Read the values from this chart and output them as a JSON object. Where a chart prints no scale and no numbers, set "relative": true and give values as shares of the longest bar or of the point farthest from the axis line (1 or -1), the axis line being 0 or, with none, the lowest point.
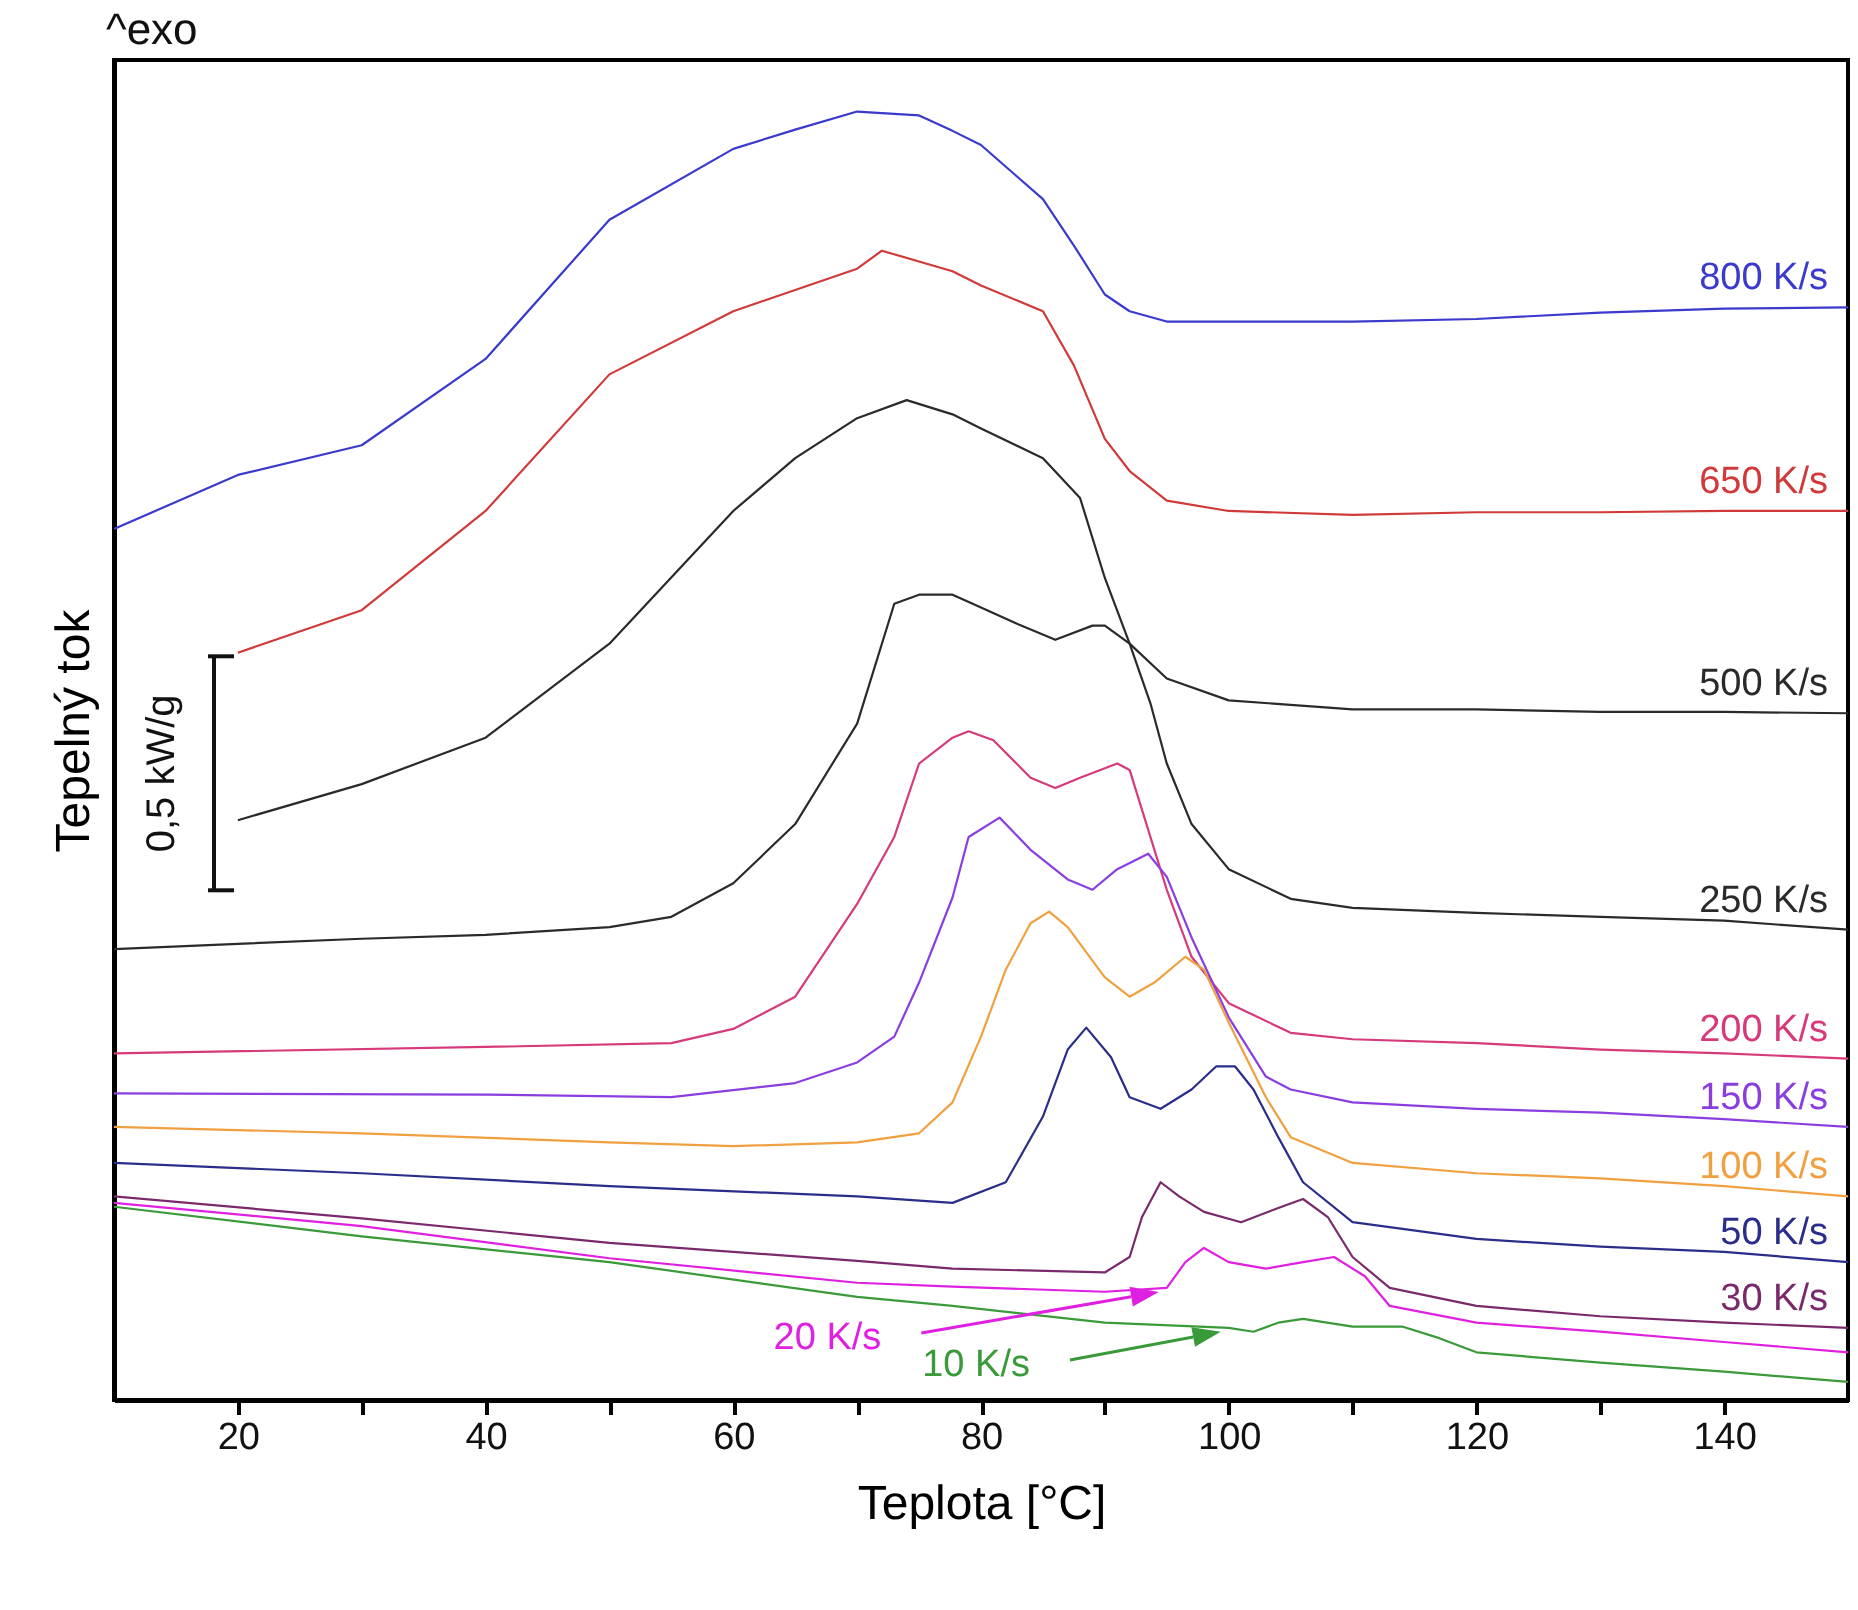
{
  "chart_data": {
    "type": "line",
    "relative": true,
    "xlabel": "Teplota [°C]",
    "ylabel": "Tepelný tok",
    "annotations": [
      "^exo",
      "0,5 kW/g"
    ],
    "xlim": [
      10,
      150
    ],
    "xticks": [
      20,
      {
        "value": 30,
        "label": null
      },
      40,
      {
        "value": 50,
        "label": null
      },
      60,
      {
        "value": 70,
        "label": null
      },
      80,
      {
        "value": 90,
        "label": null
      },
      100,
      {
        "value": 110,
        "label": null
      },
      120,
      {
        "value": 130,
        "label": null
      },
      140
    ],
    "grid": false,
    "marker": "none",
    "series": [
      {
        "name": "800 K/s",
        "color": "#3a3acc",
        "x": [
          10,
          20,
          30,
          40,
          50,
          60,
          65,
          70,
          75,
          77.7,
          80,
          85,
          87.5,
          90,
          92,
          95,
          100,
          110,
          120,
          130,
          140,
          150
        ],
        "values": [
          0.676,
          0.718,
          0.741,
          0.808,
          0.916,
          0.971,
          0.986,
          1.0,
          0.997,
          0.985,
          0.974,
          0.932,
          0.896,
          0.858,
          0.845,
          0.837,
          0.837,
          0.837,
          0.839,
          0.844,
          0.847,
          0.848
        ]
      },
      {
        "name": "650 K/s",
        "color": "#d03a3a",
        "x": [
          20,
          30,
          40,
          50,
          60,
          70,
          72,
          77.7,
          80,
          85,
          87.5,
          90,
          92,
          95,
          100,
          110,
          120,
          130,
          140,
          150
        ],
        "values": [
          0.58,
          0.613,
          0.69,
          0.796,
          0.845,
          0.878,
          0.892,
          0.876,
          0.865,
          0.845,
          0.803,
          0.746,
          0.721,
          0.698,
          0.69,
          0.687,
          0.689,
          0.689,
          0.69,
          0.69
        ]
      },
      {
        "name": "500 K/s",
        "color": "#2a2a2a",
        "x": [
          20,
          30,
          40,
          50,
          60,
          65,
          70,
          74,
          77.7,
          80,
          85,
          88,
          90,
          92,
          95,
          100,
          110,
          120,
          130,
          140,
          150
        ],
        "values": [
          0.45,
          0.478,
          0.514,
          0.587,
          0.69,
          0.731,
          0.762,
          0.776,
          0.765,
          0.754,
          0.731,
          0.7,
          0.638,
          0.587,
          0.56,
          0.543,
          0.536,
          0.536,
          0.534,
          0.534,
          0.533
        ]
      },
      {
        "name": "250 K/s",
        "color": "#2a2a2a",
        "x": [
          10,
          20,
          30,
          40,
          50,
          55,
          60,
          65,
          70,
          73,
          75,
          77.7,
          80,
          83,
          86,
          89,
          90,
          92,
          93.7,
          95,
          97,
          100,
          105,
          110,
          120,
          130,
          140,
          150
        ],
        "values": [
          0.35,
          0.354,
          0.358,
          0.361,
          0.367,
          0.375,
          0.401,
          0.447,
          0.525,
          0.618,
          0.625,
          0.625,
          0.615,
          0.602,
          0.59,
          0.601,
          0.601,
          0.587,
          0.54,
          0.494,
          0.447,
          0.412,
          0.389,
          0.382,
          0.378,
          0.375,
          0.372,
          0.365
        ]
      },
      {
        "name": "200 K/s",
        "color": "#d63a7a",
        "x": [
          10,
          40,
          55,
          60,
          65,
          70,
          73,
          75,
          77.7,
          79,
          81,
          84,
          86,
          88,
          91,
          92,
          95,
          97,
          100,
          105,
          110,
          120,
          130,
          140,
          150
        ],
        "values": [
          0.269,
          0.274,
          0.277,
          0.288,
          0.313,
          0.385,
          0.437,
          0.494,
          0.514,
          0.519,
          0.512,
          0.483,
          0.475,
          0.483,
          0.494,
          0.489,
          0.396,
          0.344,
          0.308,
          0.285,
          0.28,
          0.277,
          0.272,
          0.269,
          0.265
        ]
      },
      {
        "name": "150 K/s",
        "color": "#8a3ee0",
        "x": [
          10,
          40,
          55,
          65,
          70,
          73,
          75,
          77.7,
          79,
          81.5,
          84,
          87,
          89,
          91,
          93.5,
          95,
          97,
          100,
          103,
          105,
          110,
          120,
          130,
          140,
          150
        ],
        "values": [
          0.238,
          0.237,
          0.235,
          0.246,
          0.262,
          0.282,
          0.324,
          0.39,
          0.437,
          0.452,
          0.427,
          0.404,
          0.396,
          0.412,
          0.424,
          0.406,
          0.359,
          0.297,
          0.251,
          0.241,
          0.231,
          0.226,
          0.223,
          0.218,
          0.212
        ]
      },
      {
        "name": "100 K/s",
        "color": "#f0a040",
        "x": [
          10,
          30,
          50,
          60,
          70,
          75,
          77.7,
          80,
          82,
          84,
          85.5,
          87,
          90,
          92,
          94,
          96.5,
          98,
          100,
          103,
          105,
          110,
          120,
          130,
          140,
          150
        ],
        "values": [
          0.212,
          0.207,
          0.2,
          0.197,
          0.2,
          0.207,
          0.231,
          0.282,
          0.334,
          0.37,
          0.379,
          0.367,
          0.328,
          0.313,
          0.324,
          0.344,
          0.334,
          0.293,
          0.235,
          0.204,
          0.184,
          0.176,
          0.172,
          0.166,
          0.158
        ]
      },
      {
        "name": "50 K/s",
        "color": "#2a2e8a",
        "x": [
          10,
          30,
          50,
          70,
          77.7,
          82,
          85,
          87,
          88.5,
          90.5,
          92,
          94.5,
          97,
          99,
          100.5,
          102,
          104,
          106,
          110,
          120,
          130,
          140,
          150
        ],
        "values": [
          0.184,
          0.176,
          0.166,
          0.158,
          0.153,
          0.169,
          0.22,
          0.272,
          0.289,
          0.266,
          0.235,
          0.226,
          0.241,
          0.259,
          0.259,
          0.241,
          0.204,
          0.169,
          0.138,
          0.125,
          0.119,
          0.115,
          0.107
        ]
      },
      {
        "name": "30 K/s",
        "color": "#7a2a6a",
        "x": [
          10,
          30,
          50,
          70,
          77.7,
          90,
          92,
          93,
          94.5,
          96,
          98,
          101,
          104,
          106,
          108,
          110,
          113,
          120,
          130,
          140,
          150
        ],
        "values": [
          0.158,
          0.141,
          0.122,
          0.108,
          0.102,
          0.099,
          0.111,
          0.142,
          0.169,
          0.158,
          0.146,
          0.138,
          0.149,
          0.156,
          0.142,
          0.111,
          0.087,
          0.073,
          0.065,
          0.06,
          0.056
        ]
      },
      {
        "name": "20 K/s",
        "color": "#e020e0",
        "x": [
          10,
          30,
          50,
          70,
          77.7,
          90,
          95,
          96.5,
          98,
          100,
          103,
          106,
          108.5,
          111,
          113,
          120,
          130,
          140,
          150
        ],
        "values": [
          0.153,
          0.135,
          0.11,
          0.091,
          0.088,
          0.084,
          0.087,
          0.107,
          0.118,
          0.107,
          0.102,
          0.107,
          0.111,
          0.096,
          0.073,
          0.06,
          0.053,
          0.045,
          0.037
        ]
      },
      {
        "name": "10 K/s",
        "color": "#3a9a3a",
        "x": [
          10,
          30,
          50,
          70,
          77.7,
          90,
          100,
          102,
          104,
          106,
          110,
          114,
          117,
          120,
          130,
          140,
          150
        ],
        "values": [
          0.15,
          0.127,
          0.107,
          0.08,
          0.073,
          0.06,
          0.056,
          0.053,
          0.06,
          0.063,
          0.057,
          0.057,
          0.048,
          0.037,
          0.029,
          0.022,
          0.014
        ]
      }
    ]
  }
}
